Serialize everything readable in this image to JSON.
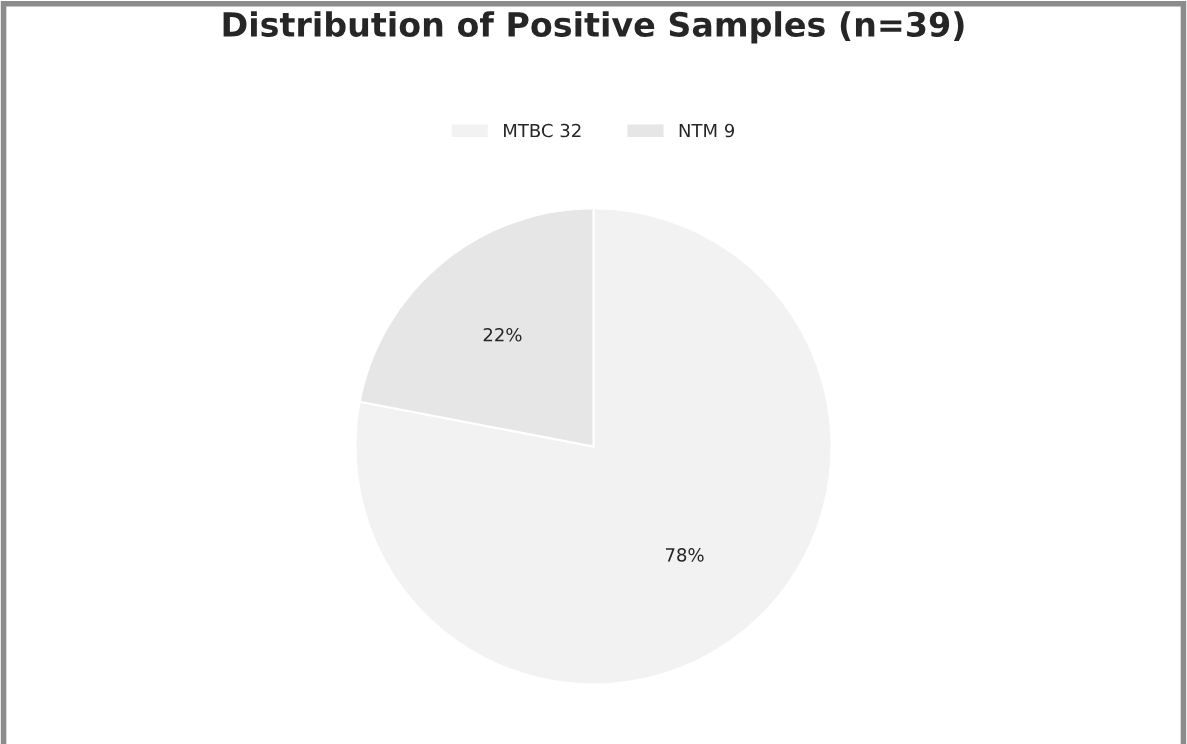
{
  "chart_data": {
    "type": "pie",
    "title": "Distribution of Positive Samples (n=39)",
    "categories": [
      "MTBC 32",
      "NTM 9"
    ],
    "values": [
      78,
      22
    ],
    "value_labels": [
      "78%",
      "22%"
    ],
    "colors": [
      "#f2f2f2",
      "#e6e6e6"
    ],
    "legend": "top"
  }
}
